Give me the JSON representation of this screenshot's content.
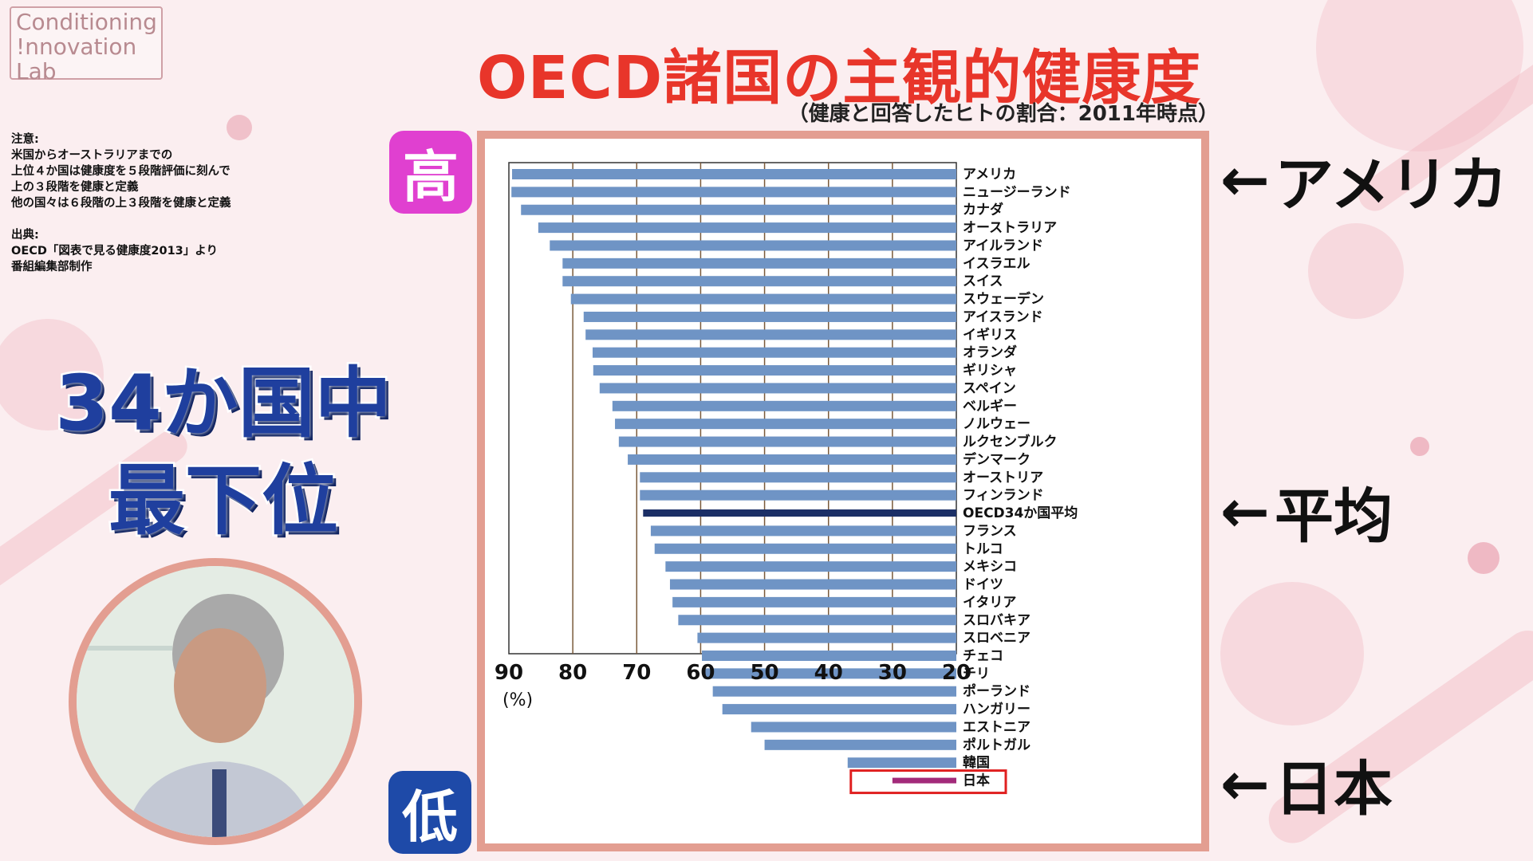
{
  "logo": {
    "line1": "Conditioning",
    "line2": "!nnovation",
    "line3": "Lab"
  },
  "title": "OECD諸国の主観的健康度",
  "subtitle": "（健康と回答したヒトの割合：2011年時点）",
  "note": {
    "heading": "注意:",
    "lines": [
      "米国からオーストラリアまでの",
      "上位４か国は健康度を５段階評価に刻んで",
      "上の３段階を健康と定義",
      "他の国々は６段階の上３段階を健康と定義"
    ],
    "source_heading": "出典:",
    "source_lines": [
      "OECD「図表で見る健康度2013」より",
      "番組編集部制作"
    ]
  },
  "headline": {
    "line1": "34か国中",
    "line2": "最下位"
  },
  "badges": {
    "high": "高",
    "low": "低"
  },
  "callouts": {
    "usa": "アメリカ",
    "average": "平均",
    "japan": "日本",
    "arrow": "←"
  },
  "chart_data": {
    "type": "bar",
    "orientation": "horizontal",
    "x_reversed": true,
    "xlim": [
      90,
      20
    ],
    "xticks": [
      "90",
      "80",
      "70",
      "60",
      "50",
      "40",
      "30",
      "20"
    ],
    "xunit": "(%)",
    "categories": [
      "アメリカ",
      "ニュージーランド",
      "カナダ",
      "オーストラリア",
      "アイルランド",
      "イスラエル",
      "スイス",
      "スウェーデン",
      "アイスランド",
      "イギリス",
      "オランダ",
      "ギリシャ",
      "スペイン",
      "ベルギー",
      "ノルウェー",
      "ルクセンブルク",
      "デンマーク",
      "オーストリア",
      "フィンランド",
      "OECD34か国平均",
      "フランス",
      "トルコ",
      "メキシコ",
      "ドイツ",
      "イタリア",
      "スロバキア",
      "スロベニア",
      "チェコ",
      "チリ",
      "ポーランド",
      "ハンガリー",
      "エストニア",
      "ポルトガル",
      "韓国",
      "日本"
    ],
    "values": [
      89.5,
      89.6,
      88.1,
      85.4,
      83.6,
      81.6,
      81.6,
      80.3,
      78.3,
      78.0,
      76.9,
      76.8,
      75.8,
      73.8,
      73.4,
      72.8,
      71.4,
      69.5,
      69.5,
      69.0,
      67.8,
      67.2,
      65.5,
      64.8,
      64.4,
      63.5,
      60.5,
      59.8,
      59.5,
      58.1,
      56.6,
      52.1,
      50.0,
      37.0,
      30.0
    ],
    "colors": {
      "bar": "#6f94c5",
      "average": "#1b2f66",
      "japan": "#a32a7a",
      "highlight_box": "#e02020",
      "grid": "#7a5a3a"
    }
  }
}
